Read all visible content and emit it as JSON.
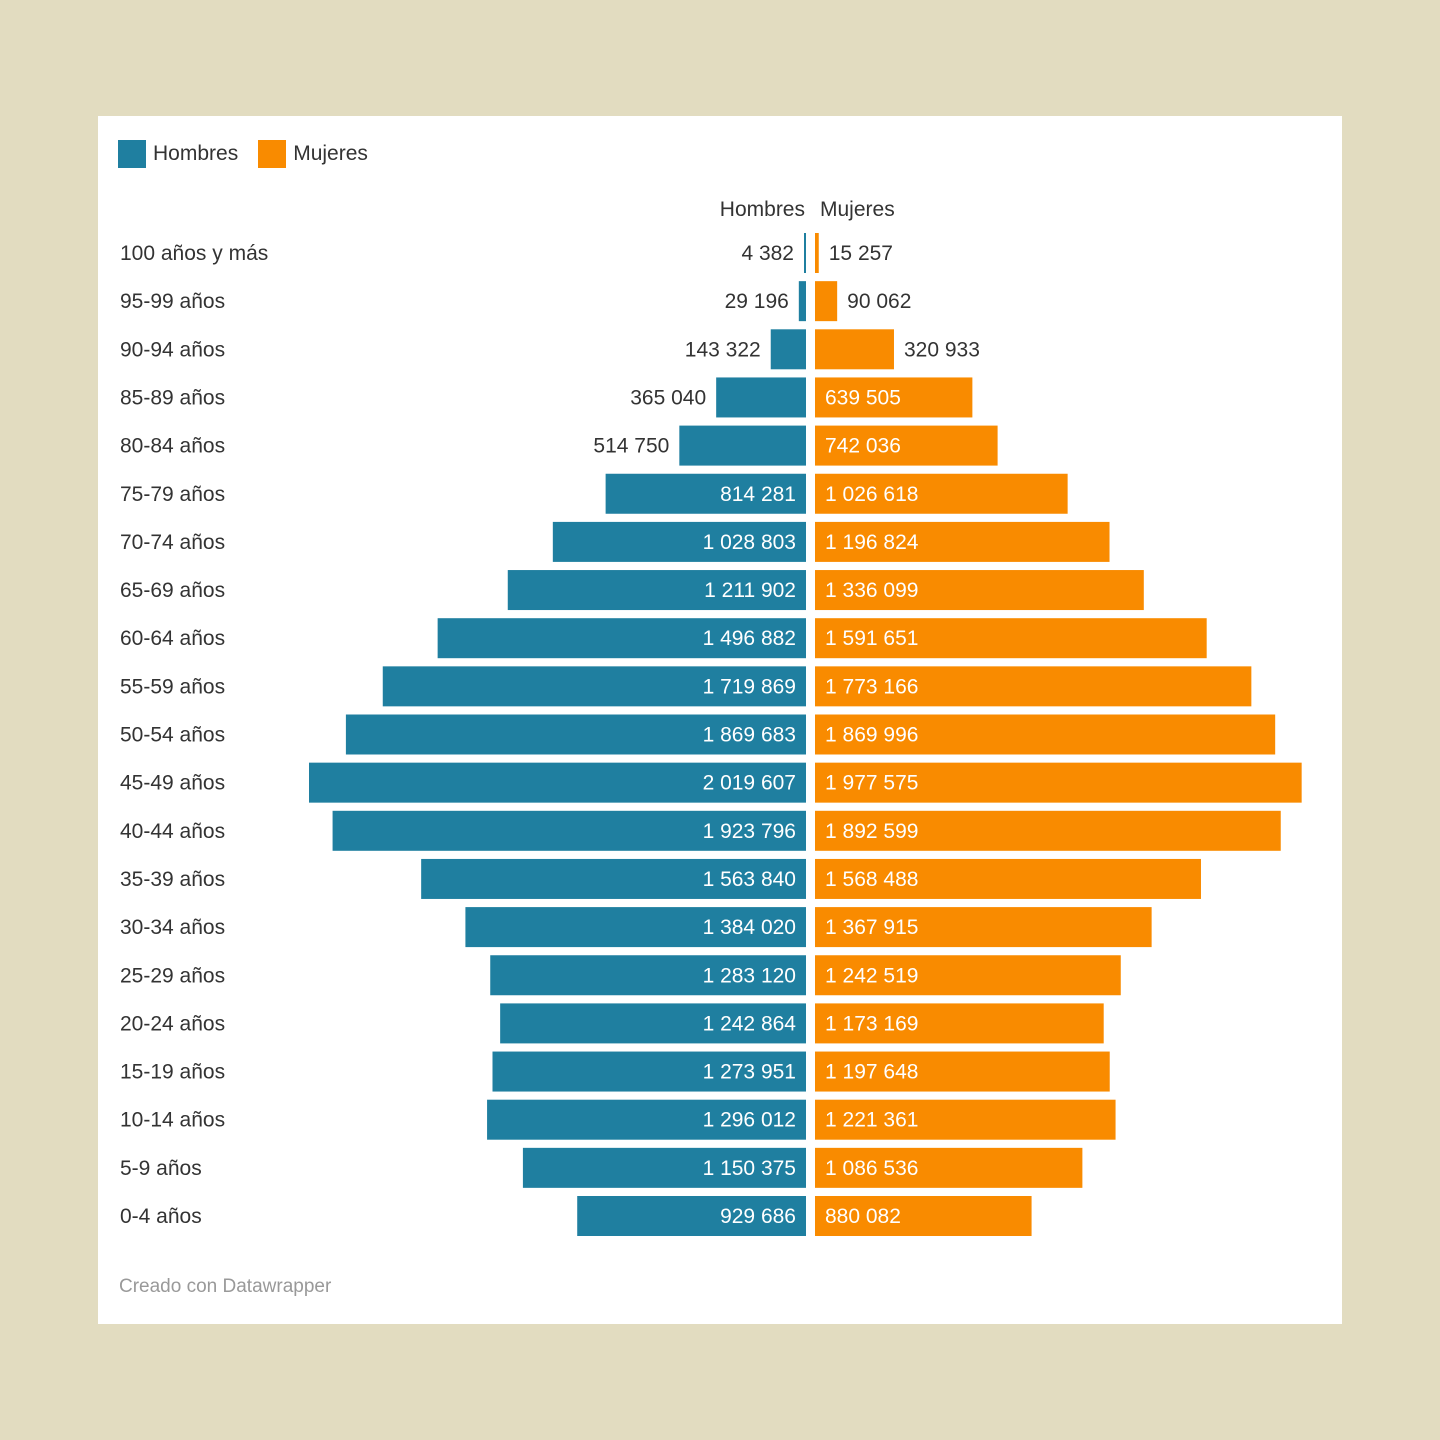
{
  "legend": [
    {
      "label": "Hombres",
      "color": "#1f7fa0"
    },
    {
      "label": "Mujeres",
      "color": "#f98b00"
    }
  ],
  "credit": "Creado con Datawrapper",
  "chart_data": {
    "type": "bar",
    "subtype": "population-pyramid",
    "title": "",
    "column_headers": [
      "Hombres",
      "Mujeres"
    ],
    "categories": [
      "100 años y más",
      "95-99 años",
      "90-94 años",
      "85-89 años",
      "80-84 años",
      "75-79 años",
      "70-74 años",
      "65-69 años",
      "60-64 años",
      "55-59 años",
      "50-54 años",
      "45-49 años",
      "40-44 años",
      "35-39 años",
      "30-34 años",
      "25-29 años",
      "20-24 años",
      "15-19 años",
      "10-14 años",
      "5-9 años",
      "0-4 años"
    ],
    "series": [
      {
        "name": "Hombres",
        "color": "#1f7fa0",
        "direction": "left",
        "values": [
          4382,
          29196,
          143322,
          365040,
          514750,
          814281,
          1028803,
          1211902,
          1496882,
          1719869,
          1869683,
          2019607,
          1923796,
          1563840,
          1384020,
          1283120,
          1242864,
          1273951,
          1296012,
          1150375,
          929686
        ],
        "labels": [
          "4 382",
          "29 196",
          "143 322",
          "365 040",
          "514 750",
          "814 281",
          "1 028 803",
          "1 211 902",
          "1 496 882",
          "1 719 869",
          "1 869 683",
          "2 019 607",
          "1 923 796",
          "1 563 840",
          "1 384 020",
          "1 283 120",
          "1 242 864",
          "1 273 951",
          "1 296 012",
          "1 150 375",
          "929 686"
        ]
      },
      {
        "name": "Mujeres",
        "color": "#f98b00",
        "direction": "right",
        "values": [
          15257,
          90062,
          320933,
          639505,
          742036,
          1026618,
          1196824,
          1336099,
          1591651,
          1773166,
          1869996,
          1977575,
          1892599,
          1568488,
          1367915,
          1242519,
          1173169,
          1197648,
          1221361,
          1086536,
          880082
        ],
        "labels": [
          "15 257",
          "90 062",
          "320 933",
          "639 505",
          "742 036",
          "1 026 618",
          "1 196 824",
          "1 336 099",
          "1 591 651",
          "1 773 166",
          "1 869 996",
          "1 977 575",
          "1 892 599",
          "1 568 488",
          "1 367 915",
          "1 242 519",
          "1 173 169",
          "1 197 648",
          "1 221 361",
          "1 086 536",
          "880 082"
        ]
      }
    ],
    "xlim": [
      0,
      2019607
    ],
    "grid": false,
    "legend_position": "top-left"
  }
}
